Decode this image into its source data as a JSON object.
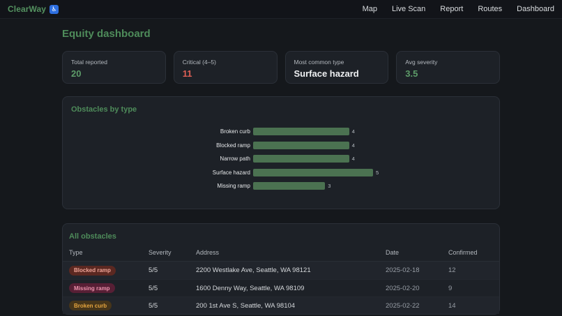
{
  "nav": {
    "brand": "ClearWay",
    "brand_icon": "♿",
    "links": [
      "Map",
      "Live Scan",
      "Report",
      "Routes",
      "Dashboard"
    ]
  },
  "page": {
    "title": "Equity dashboard"
  },
  "stats": [
    {
      "label": "Total reported",
      "value": "20",
      "tone": "green"
    },
    {
      "label": "Critical (4–5)",
      "value": "11",
      "tone": "red"
    },
    {
      "label": "Most common type",
      "value": "Surface hazard",
      "tone": "white"
    },
    {
      "label": "Avg severity",
      "value": "3.5",
      "tone": "green"
    }
  ],
  "chart_card": {
    "title": "Obstacles by type"
  },
  "chart_data": {
    "type": "bar",
    "orientation": "horizontal",
    "title": "Obstacles by type",
    "categories": [
      "Broken curb",
      "Blocked ramp",
      "Narrow path",
      "Surface hazard",
      "Missing ramp"
    ],
    "values": [
      4,
      4,
      4,
      5,
      3
    ],
    "xlim": [
      0,
      5
    ],
    "value_labels": true,
    "grid": false,
    "legend": false,
    "bar_color": "#4b7251"
  },
  "table": {
    "title": "All obstacles",
    "columns": [
      "Type",
      "Severity",
      "Address",
      "Date",
      "Confirmed"
    ],
    "rows": [
      {
        "type": "Blocked ramp",
        "badge_style": "red",
        "severity": "5/5",
        "address": "2200 Westlake Ave, Seattle, WA 98121",
        "date": "2025-02-18",
        "confirmed": "12"
      },
      {
        "type": "Missing ramp",
        "badge_style": "rose",
        "severity": "5/5",
        "address": "1600 Denny Way, Seattle, WA 98109",
        "date": "2025-02-20",
        "confirmed": "9"
      },
      {
        "type": "Broken curb",
        "badge_style": "amber",
        "severity": "5/5",
        "address": "200 1st Ave S, Seattle, WA 98104",
        "date": "2025-02-22",
        "confirmed": "14"
      }
    ]
  },
  "colors": {
    "accent_green": "#549260",
    "value_green": "#5d9c69",
    "critical_red": "#dd5f55",
    "bar_green": "#4b7251",
    "brand_chip_blue": "#2e6fe0",
    "badge_red_bg": "#5b2821",
    "badge_red_text": "#f0a598",
    "badge_rose_bg": "#571f35",
    "badge_rose_text": "#ec93ad",
    "badge_amber_bg": "#46351a",
    "badge_amber_text": "#e5a43e"
  }
}
